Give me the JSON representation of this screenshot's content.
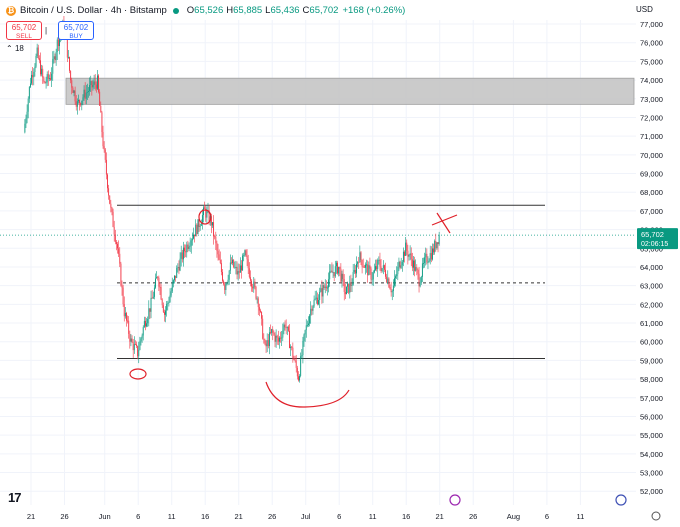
{
  "header": {
    "symbol": "Bitcoin / U.S. Dollar · 4h · Bitstamp",
    "coin_icon": "bitcoin-icon",
    "open_key": "O",
    "open": "65,526",
    "high_key": "H",
    "high": "65,885",
    "low_key": "L",
    "low": "65,436",
    "close_key": "C",
    "close": "65,702",
    "change": "+168 (+0.26%)",
    "currency": "USD"
  },
  "sell_button": {
    "price": "65,702",
    "label": "SELL"
  },
  "buy_button": {
    "price": "65,702",
    "label": "BUY"
  },
  "layers": "18",
  "price_label": {
    "price": "65,702",
    "countdown": "02:06:15"
  },
  "colors": {
    "up": "#089981",
    "down": "#f23645",
    "annotation": "#e0202a",
    "zone": "#c2c2c2"
  },
  "chart_data": {
    "type": "candlestick",
    "title": "Bitcoin / U.S. Dollar · 4h · Bitstamp",
    "ylim": [
      51700,
      78200
    ],
    "x_tick_labels": [
      "21",
      "26",
      "Jun",
      "6",
      "11",
      "16",
      "21",
      "26",
      "Jul",
      "6",
      "11",
      "16",
      "21",
      "26",
      "Aug",
      "6",
      "11"
    ],
    "y_tick_labels": [
      "52,000",
      "53,000",
      "54,000",
      "55,000",
      "56,000",
      "57,000",
      "58,000",
      "59,000",
      "60,000",
      "61,000",
      "62,000",
      "63,000",
      "64,000",
      "65,000",
      "66,000",
      "67,000",
      "68,000",
      "69,000",
      "70,000",
      "71,000",
      "72,000",
      "73,000",
      "74,000",
      "75,000",
      "76,000",
      "77,000"
    ],
    "y_ticks": [
      52000,
      53000,
      54000,
      55000,
      56000,
      57000,
      58000,
      59000,
      60000,
      61000,
      62000,
      63000,
      64000,
      65000,
      66000,
      67000,
      68000,
      69000,
      70000,
      71000,
      72000,
      73000,
      74000,
      75000,
      76000,
      77000
    ],
    "price_path": [
      [
        "May 20",
        71200
      ],
      [
        "May 21",
        74000
      ],
      [
        "May 22",
        75400
      ],
      [
        "May 23",
        73800
      ],
      [
        "May 24",
        74200
      ],
      [
        "May 25",
        76000
      ],
      [
        "May 26",
        77000
      ],
      [
        "May 27",
        74000
      ],
      [
        "May 28",
        72700
      ],
      [
        "May 29",
        73200
      ],
      [
        "May 30",
        73600
      ],
      [
        "May 31",
        73900
      ],
      [
        "Jun 1",
        70000
      ],
      [
        "Jun 2",
        67000
      ],
      [
        "Jun 3",
        65000
      ],
      [
        "Jun 4",
        61600
      ],
      [
        "Jun 5",
        60000
      ],
      [
        "Jun 6",
        59400
      ],
      [
        "Jun 7",
        61000
      ],
      [
        "Jun 8",
        62000
      ],
      [
        "Jun 9",
        63600
      ],
      [
        "Jun 10",
        61500
      ],
      [
        "Jun 11",
        62700
      ],
      [
        "Jun 12",
        64000
      ],
      [
        "Jun 13",
        64900
      ],
      [
        "Jun 14",
        65600
      ],
      [
        "Jun 15",
        66200
      ],
      [
        "Jun 16",
        67000
      ],
      [
        "Jun 17",
        66400
      ],
      [
        "Jun 18",
        64500
      ],
      [
        "Jun 19",
        63000
      ],
      [
        "Jun 20",
        64200
      ],
      [
        "Jun 21",
        63600
      ],
      [
        "Jun 22",
        64600
      ],
      [
        "Jun 23",
        63300
      ],
      [
        "Jun 24",
        62200
      ],
      [
        "Jun 25",
        59600
      ],
      [
        "Jun 26",
        60500
      ],
      [
        "Jun 27",
        60000
      ],
      [
        "Jun 28",
        61000
      ],
      [
        "Jun 29",
        59500
      ],
      [
        "Jun 30",
        58100
      ],
      [
        "Jul 1",
        60500
      ],
      [
        "Jul 2",
        62000
      ],
      [
        "Jul 3",
        62400
      ],
      [
        "Jul 4",
        63000
      ],
      [
        "Jul 5",
        63700
      ],
      [
        "Jul 6",
        64000
      ],
      [
        "Jul 7",
        62600
      ],
      [
        "Jul 8",
        63200
      ],
      [
        "Jul 9",
        64600
      ],
      [
        "Jul 10",
        64000
      ],
      [
        "Jul 11",
        63500
      ],
      [
        "Jul 12",
        64200
      ],
      [
        "Jul 13",
        63700
      ],
      [
        "Jul 14",
        62700
      ],
      [
        "Jul 15",
        64100
      ],
      [
        "Jul 16",
        65000
      ],
      [
        "Jul 17",
        64300
      ],
      [
        "Jul 18",
        63300
      ],
      [
        "Jul 19",
        64400
      ],
      [
        "Jul 20",
        64800
      ],
      [
        "Jul 21",
        65700
      ]
    ],
    "zone": {
      "from": 72700,
      "to": 74100
    },
    "resistance": 67300,
    "midline": 63150,
    "support": 59100,
    "current_price": 65702
  }
}
